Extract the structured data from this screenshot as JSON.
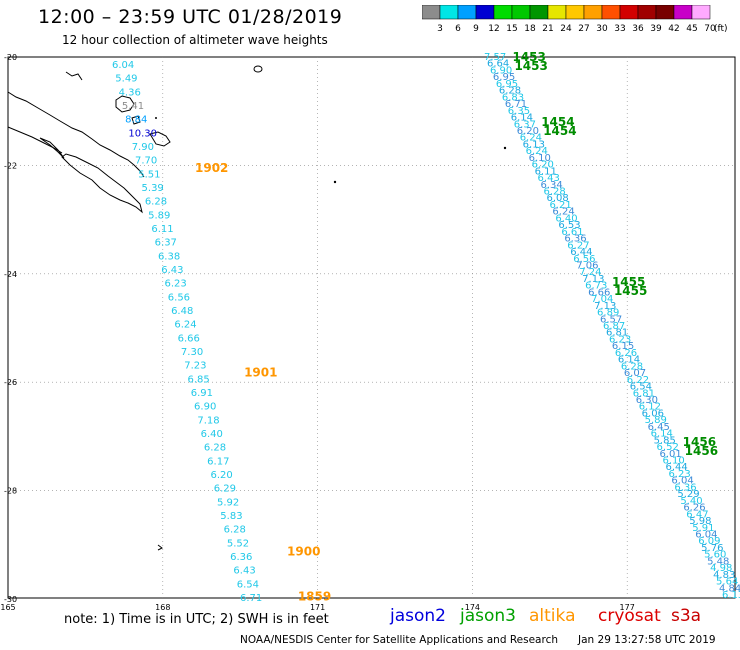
{
  "header": {
    "title": "12:00 – 23:59 UTC 01/28/2019",
    "subtitle": "12 hour collection of altimeter wave heights"
  },
  "colorbar": {
    "ticks": [
      "3",
      "6",
      "9",
      "12",
      "15",
      "18",
      "21",
      "24",
      "27",
      "30",
      "33",
      "36",
      "39",
      "42",
      "45",
      "70"
    ],
    "unit": "(ft)",
    "colors": [
      "#8c8c8c",
      "#00e6e6",
      "#00a0ff",
      "#0000d2",
      "#00dc00",
      "#00c800",
      "#009600",
      "#e6e600",
      "#ffc800",
      "#ffa000",
      "#ff5000",
      "#d20000",
      "#a00000",
      "#780000",
      "#c800c8",
      "#ffaaff"
    ]
  },
  "map": {
    "lat_labels": [
      "-20",
      "-22",
      "-24",
      "-26",
      "-28",
      "-30"
    ],
    "lon_labels": [
      "165",
      "168",
      "171",
      "174",
      "177"
    ],
    "track_west": {
      "color": "#20c8e8",
      "values": [
        "6.04",
        "5.49",
        "4.36",
        "5.41",
        "8.84",
        "10.30",
        "7.90",
        "7.70",
        "5.51",
        "5.39",
        "6.28",
        "5.89",
        "6.11",
        "6.37",
        "6.38",
        "6.43",
        "6.23",
        "6.56",
        "6.48",
        "6.24",
        "6.66",
        "7.30",
        "7.23",
        "6.85",
        "6.91",
        "6.90",
        "7.18",
        "6.40",
        "6.28",
        "6.17",
        "6.20",
        "6.29",
        "5.92",
        "5.83",
        "6.28",
        "5.52",
        "6.36",
        "6.43",
        "6.54",
        "6.71"
      ],
      "highlight": {
        "5.41": "#8c8c8c",
        "8.84": "#00a0ff",
        "10.30": "#0000d2"
      },
      "times": [
        {
          "label": "1902",
          "lat": -22.05
        },
        {
          "label": "1901",
          "lat": -25.82
        },
        {
          "label": "1900",
          "lat": -29.12
        },
        {
          "label": "1859",
          "lat": -29.95
        }
      ],
      "time_color": "#ff9600"
    },
    "track_east": {
      "values": [
        "7.57",
        "6.64",
        "6.90",
        "6.95",
        "6.95",
        "6.28",
        "6.83",
        "6.71",
        "6.35",
        "6.14",
        "6.37",
        "6.20",
        "6.24",
        "6.13",
        "6.24",
        "6.10",
        "6.20",
        "6.11",
        "6.43",
        "6.34",
        "6.28",
        "6.08",
        "6.21",
        "6.24",
        "6.40",
        "6.53",
        "6.61",
        "6.36",
        "6.27",
        "6.44",
        "6.56",
        "7.06",
        "7.24",
        "7.13",
        "6.73",
        "6.66",
        "7.04",
        "7.13",
        "6.89",
        "6.57",
        "6.87",
        "6.81",
        "6.23",
        "6.15",
        "6.26",
        "6.14",
        "6.28",
        "6.07",
        "6.22",
        "6.54",
        "6.81",
        "6.30",
        "6.12",
        "6.06",
        "5.89",
        "6.45",
        "6.14",
        "5.85",
        "6.52",
        "6.01",
        "6.10",
        "6.44",
        "6.23",
        "6.04",
        "6.36",
        "5.29",
        "5.40",
        "6.26",
        "6.47",
        "5.98",
        "5.91",
        "6.04",
        "6.09",
        "5.76",
        "5.60",
        "5.48",
        "4.98",
        "4.83",
        "5.64",
        "4.84",
        "6.13"
      ],
      "times": [
        {
          "label": "1453",
          "lat": -20.0
        },
        {
          "label": "1454",
          "lat": -21.2
        },
        {
          "label": "1455",
          "lat": -24.15
        },
        {
          "label": "1456",
          "lat": -27.1
        }
      ],
      "time_color": "#008c00"
    }
  },
  "footer": {
    "note": "note: 1) Time is in UTC; 2) SWH is in feet",
    "satellites": [
      {
        "name": "jason2",
        "color": "#0000dc"
      },
      {
        "name": "jason3",
        "color": "#00a000"
      },
      {
        "name": "altika",
        "color": "#ff9600"
      },
      {
        "name": "cryosat",
        "color": "#dc0000"
      },
      {
        "name": "s3a",
        "color": "#c80000"
      }
    ],
    "credit": "NOAA/NESDIS Center for Satellite Applications and Research",
    "timestamp": "Jan 29 13:27:58 UTC 2019"
  }
}
